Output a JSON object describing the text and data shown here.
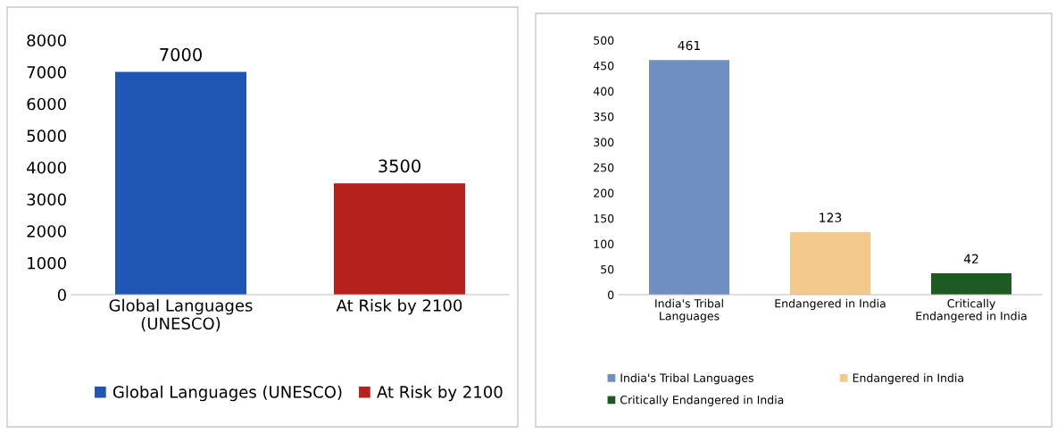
{
  "chart_data": [
    {
      "type": "bar",
      "stacked": true,
      "categories": [
        "Global Languages\n(UNESCO)",
        "At Risk by 2100"
      ],
      "series": [
        {
          "name": "Global Languages (UNESCO)",
          "color": "#1f55b3",
          "values": [
            7000,
            null
          ]
        },
        {
          "name": "At Risk by 2100",
          "color": "#b5221e",
          "values": [
            null,
            3500
          ]
        }
      ],
      "ylim": [
        0,
        8000
      ],
      "yticks": [
        0,
        1000,
        2000,
        3000,
        4000,
        5000,
        6000,
        7000,
        8000
      ],
      "data_labels": true,
      "legend": "bottom"
    },
    {
      "type": "bar",
      "stacked": true,
      "categories": [
        "India's Tribal\nLanguages",
        "Endangered in India",
        "Critically\nEndangered in India"
      ],
      "series": [
        {
          "name": "India's Tribal Languages",
          "color": "#6f8fc2",
          "values": [
            461,
            null,
            null
          ]
        },
        {
          "name": "Endangered in India",
          "color": "#f3c98c",
          "values": [
            null,
            123,
            null
          ]
        },
        {
          "name": "Critically Endangered in India",
          "color": "#1d5a22",
          "values": [
            null,
            null,
            42
          ]
        }
      ],
      "ylim": [
        0,
        500
      ],
      "yticks": [
        0,
        50,
        100,
        150,
        200,
        250,
        300,
        350,
        400,
        450,
        500
      ],
      "data_labels": true,
      "legend": "bottom"
    }
  ]
}
